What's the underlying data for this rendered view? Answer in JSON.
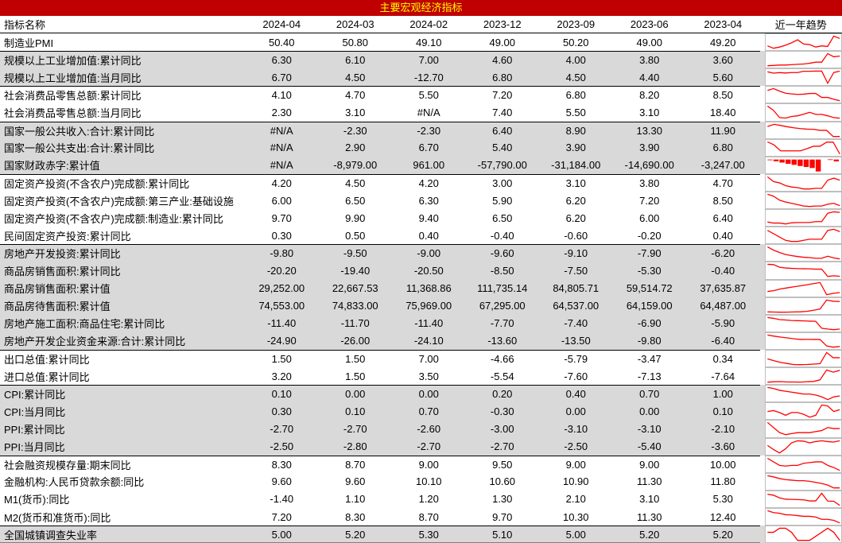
{
  "colors": {
    "title_bg": "#C00000",
    "title_fg": "#FFFF00",
    "row_shade": "#D9D9D9",
    "sparkline": "#FF0000",
    "spark_border": "#BFBFBF",
    "text": "#000000"
  },
  "chart_data": {
    "type": "table",
    "title": "主要宏观经济指标",
    "columns": [
      "指标名称",
      "2024-04",
      "2024-03",
      "2024-02",
      "2023-12",
      "2023-09",
      "2023-06",
      "2023-04",
      "近一年趋势"
    ],
    "trend_note": "sparkline of roughly the last year, oldest (left) to newest (right)",
    "rows": [
      {
        "name": "制造业PMI",
        "values": [
          "50.40",
          "50.80",
          "49.10",
          "49.00",
          "50.20",
          "49.00",
          "49.20"
        ],
        "shaded": false,
        "group_start": false,
        "sparkline": {
          "type": "line",
          "points": [
            49.2,
            48.8,
            49.0,
            49.3,
            49.7,
            50.2,
            49.5,
            49.4,
            49.0,
            49.2,
            49.1,
            50.8,
            50.4
          ]
        }
      },
      {
        "name": "规模以上工业增加值:累计同比",
        "values": [
          "6.30",
          "6.10",
          "7.00",
          "4.60",
          "4.00",
          "3.80",
          "3.60"
        ],
        "shaded": true,
        "group_start": true,
        "sparkline": {
          "type": "line",
          "points": [
            3.6,
            3.7,
            3.8,
            3.8,
            3.9,
            4.0,
            4.1,
            4.3,
            4.6,
            4.6,
            7.0,
            6.1,
            6.3
          ]
        }
      },
      {
        "name": "规模以上工业增加值:当月同比",
        "values": [
          "6.70",
          "4.50",
          "-12.70",
          "6.80",
          "4.50",
          "4.40",
          "5.60"
        ],
        "shaded": true,
        "group_start": false,
        "sparkline": {
          "type": "line",
          "points": [
            5.6,
            3.5,
            4.4,
            3.7,
            4.5,
            4.5,
            6.6,
            6.6,
            6.8,
            6.8,
            -12.7,
            4.5,
            6.7
          ]
        }
      },
      {
        "name": "社会消费品零售总额:累计同比",
        "values": [
          "4.10",
          "4.70",
          "5.50",
          "7.20",
          "6.80",
          "8.20",
          "8.50"
        ],
        "shaded": false,
        "group_start": true,
        "sparkline": {
          "type": "line",
          "points": [
            8.5,
            9.3,
            8.2,
            7.3,
            7.0,
            6.8,
            6.9,
            7.2,
            7.2,
            5.5,
            5.5,
            4.7,
            4.1
          ]
        }
      },
      {
        "name": "社会消费品零售总额:当月同比",
        "values": [
          "2.30",
          "3.10",
          "#N/A",
          "7.40",
          "5.50",
          "3.10",
          "18.40"
        ],
        "shaded": false,
        "group_start": false,
        "sparkline": {
          "type": "line",
          "points": [
            18.4,
            12.7,
            3.1,
            2.5,
            4.6,
            5.5,
            7.6,
            10.1,
            7.4,
            7.4,
            5.5,
            3.1,
            2.3
          ]
        }
      },
      {
        "name": "国家一般公共收入:合计:累计同比",
        "values": [
          "#N/A",
          "-2.30",
          "-2.30",
          "6.40",
          "8.90",
          "13.30",
          "11.90"
        ],
        "shaded": true,
        "group_start": true,
        "sparkline": {
          "type": "line",
          "points": [
            11.9,
            14.9,
            13.3,
            11.5,
            10.0,
            8.9,
            8.1,
            7.9,
            6.4,
            6.4,
            -2.3,
            -2.3
          ]
        }
      },
      {
        "name": "国家一般公共支出:合计:累计同比",
        "values": [
          "#N/A",
          "2.90",
          "6.70",
          "5.40",
          "3.90",
          "3.90",
          "6.80"
        ],
        "shaded": true,
        "group_start": false,
        "sparkline": {
          "type": "line",
          "points": [
            6.8,
            5.8,
            3.9,
            3.9,
            3.9,
            3.9,
            4.6,
            5.4,
            5.4,
            6.7,
            6.7,
            2.9
          ]
        }
      },
      {
        "name": "国家财政赤字:累计值",
        "values": [
          "#N/A",
          "-8,979.00",
          "961.00",
          "-57,790.00",
          "-31,184.00",
          "-14,690.00",
          "-3,247.00"
        ],
        "shaded": true,
        "group_start": false,
        "sparkline": {
          "type": "bar",
          "points": [
            -3247,
            -8256,
            -14690,
            -20716,
            -25556,
            -31184,
            -36051,
            -40974,
            -57790,
            null,
            961,
            -8979
          ]
        }
      },
      {
        "name": "固定资产投资(不含农户)完成额:累计同比",
        "values": [
          "4.20",
          "4.50",
          "4.20",
          "3.00",
          "3.10",
          "3.80",
          "4.70"
        ],
        "shaded": false,
        "group_start": true,
        "sparkline": {
          "type": "line",
          "points": [
            4.7,
            4.0,
            3.8,
            3.4,
            3.2,
            3.1,
            2.9,
            2.9,
            3.0,
            3.0,
            4.2,
            4.5,
            4.2
          ]
        }
      },
      {
        "name": "固定资产投资(不含农户)完成额:第三产业:基础设施",
        "values": [
          "6.00",
          "6.50",
          "6.30",
          "5.90",
          "6.20",
          "7.20",
          "8.50"
        ],
        "shaded": false,
        "group_start": false,
        "sparkline": {
          "type": "line",
          "points": [
            8.5,
            8.1,
            7.2,
            6.8,
            6.5,
            6.2,
            5.9,
            5.8,
            5.9,
            5.9,
            6.3,
            6.5,
            6.0
          ]
        }
      },
      {
        "name": "固定资产投资(不含农户)完成额:制造业:累计同比",
        "values": [
          "9.70",
          "9.90",
          "9.40",
          "6.50",
          "6.20",
          "6.00",
          "6.40"
        ],
        "shaded": false,
        "group_start": false,
        "sparkline": {
          "type": "line",
          "points": [
            6.4,
            6.0,
            6.0,
            5.7,
            6.1,
            6.2,
            6.2,
            6.2,
            6.5,
            6.5,
            9.4,
            9.9,
            9.7
          ]
        }
      },
      {
        "name": "民间固定资产投资:累计同比",
        "values": [
          "0.30",
          "0.50",
          "0.40",
          "-0.40",
          "-0.60",
          "-0.20",
          "0.40"
        ],
        "shaded": false,
        "group_start": false,
        "sparkline": {
          "type": "line",
          "points": [
            0.4,
            0.1,
            -0.2,
            -0.5,
            -0.6,
            -0.6,
            -0.5,
            -0.4,
            -0.4,
            -0.4,
            0.4,
            0.5,
            0.3
          ]
        }
      },
      {
        "name": "房地产开发投资:累计同比",
        "values": [
          "-9.80",
          "-9.50",
          "-9.00",
          "-9.60",
          "-9.10",
          "-7.90",
          "-6.20"
        ],
        "shaded": true,
        "group_start": true,
        "sparkline": {
          "type": "line",
          "points": [
            -6.2,
            -7.2,
            -7.9,
            -8.5,
            -8.8,
            -9.1,
            -9.3,
            -9.4,
            -9.6,
            -9.6,
            -9.0,
            -9.5,
            -9.8
          ]
        }
      },
      {
        "name": "商品房销售面积:累计同比",
        "values": [
          "-20.20",
          "-19.40",
          "-20.50",
          "-8.50",
          "-7.50",
          "-5.30",
          "-0.40"
        ],
        "shaded": true,
        "group_start": false,
        "sparkline": {
          "type": "line",
          "points": [
            -0.4,
            -0.9,
            -5.3,
            -6.5,
            -7.1,
            -7.5,
            -7.8,
            -8.0,
            -8.5,
            -8.5,
            -20.5,
            -19.4,
            -20.2
          ]
        }
      },
      {
        "name": "商品房销售面积:累计值",
        "values": [
          "29,252.00",
          "22,667.53",
          "11,368.86",
          "111,735.14",
          "84,805.71",
          "59,514.72",
          "37,635.87"
        ],
        "shaded": true,
        "group_start": false,
        "sparkline": {
          "type": "line",
          "points": [
            37636,
            46000,
            59515,
            68000,
            77000,
            84806,
            93000,
            103000,
            111735,
            11369,
            22668,
            29252
          ]
        }
      },
      {
        "name": "商品房待售面积:累计值",
        "values": [
          "74,553.00",
          "74,833.00",
          "75,969.00",
          "67,295.00",
          "64,537.00",
          "64,159.00",
          "64,487.00"
        ],
        "shaded": true,
        "group_start": false,
        "sparkline": {
          "type": "line",
          "points": [
            64487,
            64320,
            64159,
            64250,
            64400,
            64537,
            65000,
            66000,
            67295,
            75969,
            74833,
            74553
          ]
        }
      },
      {
        "name": "房地产施工面积:商品住宅:累计同比",
        "values": [
          "-11.40",
          "-11.70",
          "-11.40",
          "-7.70",
          "-7.40",
          "-6.90",
          "-5.90"
        ],
        "shaded": true,
        "group_start": false,
        "sparkline": {
          "type": "line",
          "points": [
            -5.9,
            -6.3,
            -6.9,
            -7.1,
            -7.3,
            -7.4,
            -7.5,
            -7.6,
            -7.7,
            -11.0,
            -11.4,
            -11.7,
            -11.4
          ]
        }
      },
      {
        "name": "房地产开发企业资金来源:合计:累计同比",
        "values": [
          "-24.90",
          "-26.00",
          "-24.10",
          "-13.60",
          "-13.50",
          "-9.80",
          "-6.40"
        ],
        "shaded": true,
        "group_start": false,
        "sparkline": {
          "type": "line",
          "points": [
            -6.4,
            -8.2,
            -9.8,
            -11.1,
            -12.4,
            -13.5,
            -13.4,
            -13.5,
            -13.6,
            -24.1,
            -26.0,
            -24.9
          ]
        }
      },
      {
        "name": "出口总值:累计同比",
        "values": [
          "1.50",
          "1.50",
          "7.00",
          "-4.66",
          "-5.79",
          "-3.47",
          "0.34"
        ],
        "shaded": false,
        "group_start": true,
        "sparkline": {
          "type": "line",
          "points": [
            0.34,
            -1.7,
            -3.47,
            -4.5,
            -5.7,
            -5.79,
            -5.6,
            -5.2,
            -4.66,
            7.0,
            1.5,
            1.5
          ]
        }
      },
      {
        "name": "进口总值:累计同比",
        "values": [
          "3.20",
          "1.50",
          "3.50",
          "-5.54",
          "-7.60",
          "-7.13",
          "-7.64"
        ],
        "shaded": false,
        "group_start": false,
        "sparkline": {
          "type": "line",
          "points": [
            -7.64,
            -7.3,
            -7.13,
            -7.5,
            -7.5,
            -7.6,
            -7.2,
            -7.0,
            -5.54,
            3.5,
            1.5,
            3.2
          ]
        }
      },
      {
        "name": "CPI:累计同比",
        "values": [
          "0.10",
          "0.00",
          "0.00",
          "0.20",
          "0.40",
          "0.70",
          "1.00"
        ],
        "shaded": true,
        "group_start": true,
        "sparkline": {
          "type": "line",
          "points": [
            1.0,
            0.9,
            0.7,
            0.6,
            0.5,
            0.4,
            0.3,
            0.3,
            0.2,
            0.0,
            -0.3,
            0.0,
            0.1
          ]
        }
      },
      {
        "name": "CPI:当月同比",
        "values": [
          "0.30",
          "0.10",
          "0.70",
          "-0.30",
          "0.00",
          "0.00",
          "0.10"
        ],
        "shaded": true,
        "group_start": false,
        "sparkline": {
          "type": "line",
          "points": [
            0.1,
            0.2,
            0.0,
            -0.3,
            0.0,
            0.0,
            -0.2,
            -0.5,
            -0.3,
            0.8,
            0.7,
            0.1,
            0.3
          ]
        }
      },
      {
        "name": "PPI:累计同比",
        "values": [
          "-2.70",
          "-2.70",
          "-2.60",
          "-3.00",
          "-3.10",
          "-3.10",
          "-2.10"
        ],
        "shaded": true,
        "group_start": false,
        "sparkline": {
          "type": "line",
          "points": [
            -2.1,
            -2.6,
            -3.1,
            -3.3,
            -3.2,
            -3.1,
            -3.1,
            -3.1,
            -3.0,
            -2.9,
            -2.6,
            -2.7,
            -2.7
          ]
        }
      },
      {
        "name": "PPI:当月同比",
        "values": [
          "-2.50",
          "-2.80",
          "-2.70",
          "-2.70",
          "-2.50",
          "-5.40",
          "-3.60"
        ],
        "shaded": true,
        "group_start": false,
        "sparkline": {
          "type": "line",
          "points": [
            -3.6,
            -4.6,
            -5.4,
            -4.4,
            -3.0,
            -2.5,
            -2.6,
            -3.0,
            -2.7,
            -2.5,
            -2.7,
            -2.8,
            -2.5
          ]
        }
      },
      {
        "name": "社会融资规模存量:期末同比",
        "values": [
          "8.30",
          "8.70",
          "9.00",
          "9.50",
          "9.00",
          "9.00",
          "10.00"
        ],
        "shaded": false,
        "group_start": true,
        "sparkline": {
          "type": "line",
          "points": [
            10.0,
            9.5,
            9.0,
            8.9,
            9.0,
            9.0,
            9.3,
            9.4,
            9.5,
            9.5,
            9.0,
            8.7,
            8.3
          ]
        }
      },
      {
        "name": "金融机构:人民币贷款余额:同比",
        "values": [
          "9.60",
          "9.60",
          "10.10",
          "10.60",
          "10.90",
          "11.30",
          "11.80"
        ],
        "shaded": false,
        "group_start": false,
        "sparkline": {
          "type": "line",
          "points": [
            11.8,
            11.6,
            11.3,
            11.1,
            11.0,
            10.9,
            10.9,
            10.8,
            10.6,
            10.4,
            10.1,
            9.6,
            9.6
          ]
        }
      },
      {
        "name": "M1(货币):同比",
        "values": [
          "-1.40",
          "1.10",
          "1.20",
          "1.30",
          "2.10",
          "3.10",
          "5.30"
        ],
        "shaded": false,
        "group_start": false,
        "sparkline": {
          "type": "line",
          "points": [
            5.3,
            4.7,
            3.1,
            2.3,
            2.2,
            2.1,
            1.9,
            1.3,
            1.3,
            5.9,
            1.2,
            1.1,
            -1.4
          ]
        }
      },
      {
        "name": "M2(货币和准货币):同比",
        "values": [
          "7.20",
          "8.30",
          "8.70",
          "9.70",
          "10.30",
          "11.30",
          "12.40"
        ],
        "shaded": false,
        "group_start": false,
        "sparkline": {
          "type": "line",
          "points": [
            12.4,
            11.6,
            11.3,
            10.7,
            10.6,
            10.3,
            10.0,
            10.0,
            9.7,
            8.7,
            8.7,
            8.3,
            7.2
          ]
        }
      },
      {
        "name": "全国城镇调查失业率",
        "values": [
          "5.00",
          "5.20",
          "5.30",
          "5.10",
          "5.00",
          "5.20",
          "5.20"
        ],
        "shaded": true,
        "group_start": true,
        "sparkline": {
          "type": "line",
          "points": [
            5.2,
            5.2,
            5.3,
            5.3,
            5.2,
            5.0,
            5.0,
            5.0,
            5.1,
            5.2,
            5.3,
            5.2,
            5.0
          ]
        }
      }
    ]
  }
}
